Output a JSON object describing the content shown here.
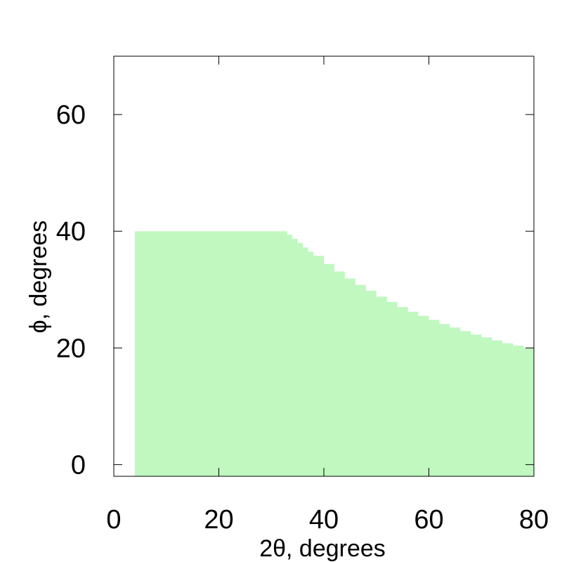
{
  "chart_data": {
    "type": "area",
    "title": "",
    "xlabel": "2θ, degrees",
    "ylabel": "ϕ, degrees",
    "xlim": [
      0,
      80
    ],
    "ylim": [
      -2,
      70
    ],
    "x_ticks": [
      0,
      20,
      40,
      60,
      80
    ],
    "y_ticks": [
      0,
      20,
      40,
      60
    ],
    "grid": false,
    "fill_color": "#c0f8c0",
    "series": [
      {
        "x": [
          4,
          32,
          33,
          34,
          35,
          36,
          37,
          38,
          40,
          42,
          44,
          46,
          48,
          50,
          52,
          54,
          56,
          58,
          60,
          62,
          64,
          66,
          68,
          70,
          72,
          74,
          76,
          78,
          80
        ],
        "y": [
          40,
          40,
          39.4,
          38.7,
          38.0,
          37.2,
          36.5,
          35.8,
          34.4,
          33.1,
          31.9,
          30.8,
          29.8,
          28.8,
          27.9,
          27.0,
          26.2,
          25.5,
          24.8,
          24.1,
          23.5,
          22.9,
          22.3,
          21.8,
          21.3,
          20.8,
          20.4,
          20.0,
          19.6
        ]
      }
    ]
  }
}
